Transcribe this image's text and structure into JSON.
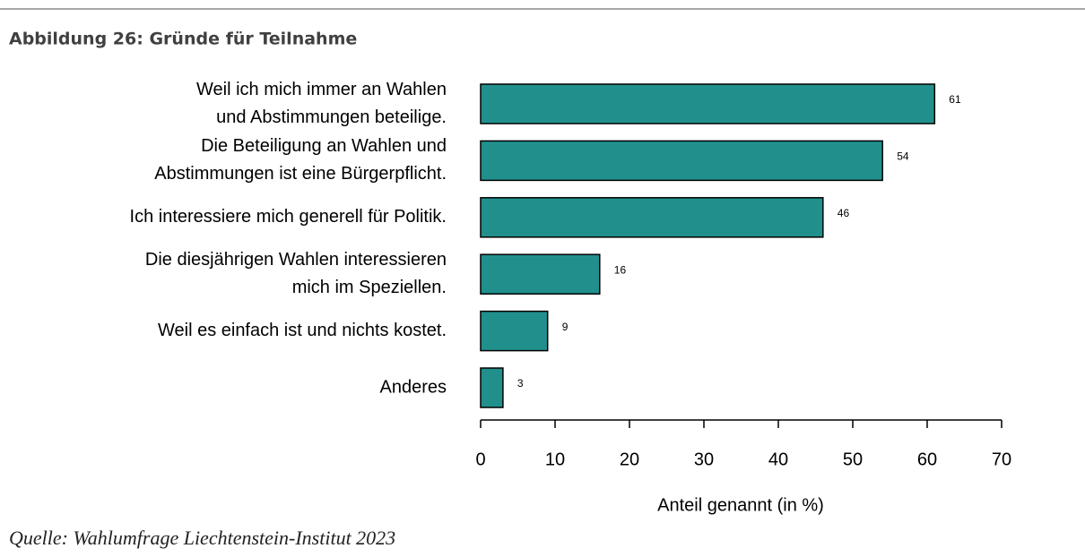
{
  "chart_data": {
    "type": "barh",
    "title": "Abbildung 26: Gründe für Teilnahme",
    "categories": [
      [
        "Weil ich mich immer an Wahlen",
        "und Abstimmungen beteilige."
      ],
      [
        "Die Beteiligung an Wahlen und",
        "Abstimmungen ist eine Bürgerpflicht."
      ],
      [
        "Ich interessiere mich generell für Politik."
      ],
      [
        "Die diesjährigen Wahlen interessieren",
        "mich im Speziellen."
      ],
      [
        "Weil es einfach ist und nichts kostet."
      ],
      [
        "Anderes"
      ]
    ],
    "values": [
      61,
      54,
      46,
      16,
      9,
      3
    ],
    "color": "#21908d",
    "xlim": [
      0,
      70
    ],
    "xticks": [
      0,
      10,
      20,
      30,
      40,
      50,
      60,
      70
    ],
    "xlabel": "Anteil genannt (in %)",
    "source": "Quelle: Wahlumfrage Liechtenstein-Institut 2023"
  }
}
